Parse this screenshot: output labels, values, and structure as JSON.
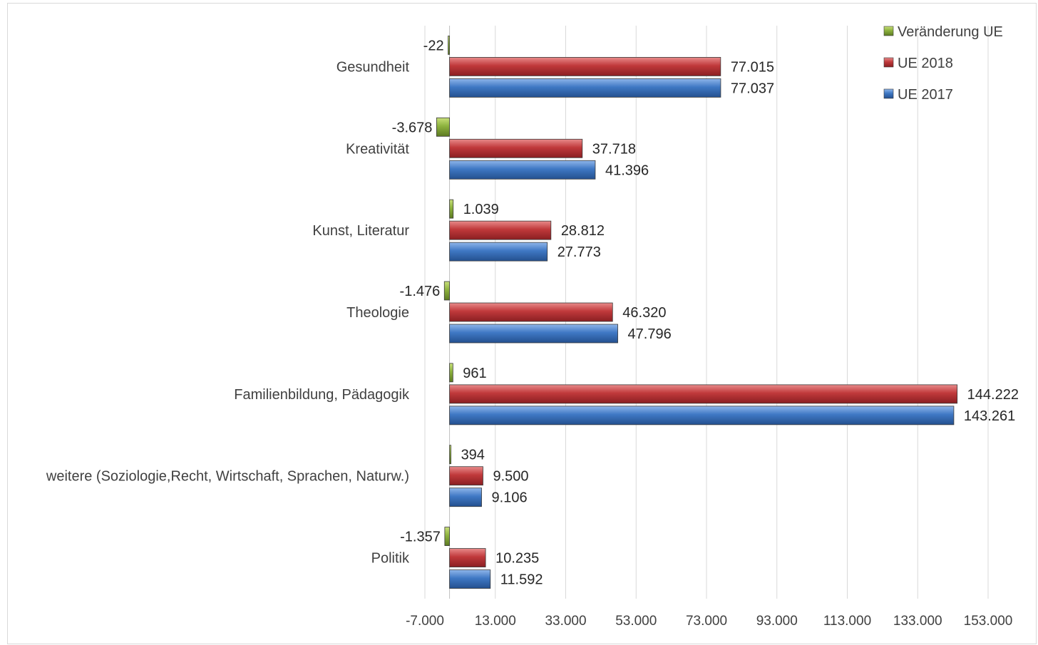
{
  "chart_data": {
    "type": "bar",
    "orientation": "horizontal",
    "title": "",
    "xlabel": "",
    "ylabel": "",
    "categories": [
      "Gesundheit",
      "Kreativität",
      "Kunst, Literatur",
      "Theologie",
      "Familienbildung, Pädagogik",
      "weitere (Soziologie,Recht, Wirtschaft, Sprachen, Naturw.)",
      "Politik"
    ],
    "series": [
      {
        "name": "Veränderung UE",
        "color": "#8db23e",
        "values": [
          -22,
          -3678,
          1039,
          -1476,
          961,
          394,
          -1357
        ],
        "labels": [
          "-22",
          "-3.678",
          "1.039",
          "-1.476",
          "961",
          "394",
          "-1.357"
        ]
      },
      {
        "name": "UE 2018",
        "color": "#c0393b",
        "values": [
          77015,
          37718,
          28812,
          46320,
          144222,
          9500,
          10235
        ],
        "labels": [
          "77.015",
          "37.718",
          "28.812",
          "46.320",
          "144.222",
          "9.500",
          "10.235"
        ]
      },
      {
        "name": "UE 2017",
        "color": "#3f78c4",
        "values": [
          77037,
          41396,
          27773,
          47796,
          143261,
          9106,
          11592
        ],
        "labels": [
          "77.037",
          "41.396",
          "27.773",
          "47.796",
          "143.261",
          "9.106",
          "11.592"
        ]
      }
    ],
    "xlim": [
      -7000,
      153000
    ],
    "xticks": [
      -7000,
      13000,
      33000,
      53000,
      73000,
      93000,
      113000,
      133000,
      153000
    ],
    "xtick_labels": [
      "-7.000",
      "13.000",
      "33.000",
      "53.000",
      "73.000",
      "93.000",
      "113.000",
      "133.000",
      "153.000"
    ],
    "grid": "vertical",
    "legend_position": "top-right",
    "legend_order": [
      "Veränderung UE",
      "UE 2018",
      "UE 2017"
    ]
  }
}
